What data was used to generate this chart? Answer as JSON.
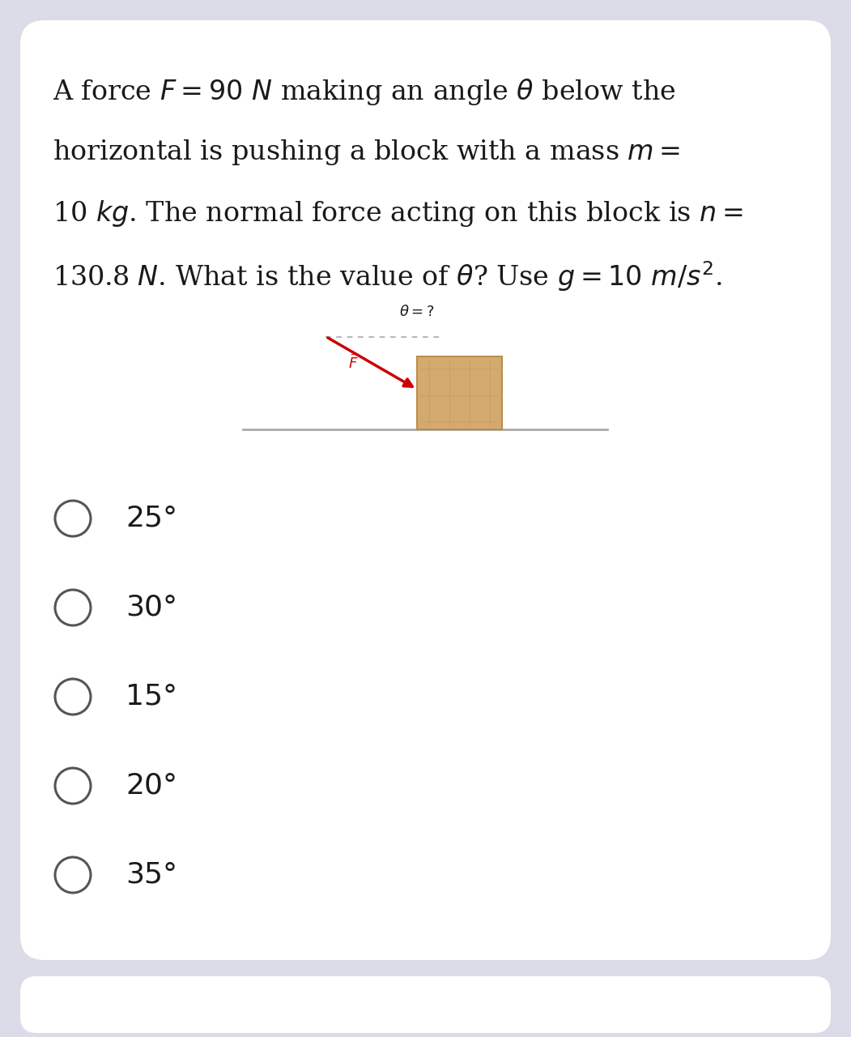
{
  "background_color": "#dcdce8",
  "card_color": "#ffffff",
  "question_lines": [
    "A force $F = 90$ $N$ making an angle $\\theta$ below the",
    "horizontal is pushing a block with a mass $m =$",
    "10 $kg$. The normal force acting on this block is $n =$",
    "130.8 $N$. What is the value of $\\theta$? Use $g = 10$ $m/s^2$."
  ],
  "choices": [
    "25°",
    "30°",
    "15°",
    "20°",
    "35°"
  ],
  "text_color": "#1a1a1a",
  "choice_fontsize": 26,
  "question_fontsize": 24,
  "block_color": "#d4aa70",
  "block_edge_color": "#b8904a",
  "arrow_color": "#cc0000",
  "dotted_line_color": "#aaaaaa",
  "ground_color": "#aaaaaa"
}
